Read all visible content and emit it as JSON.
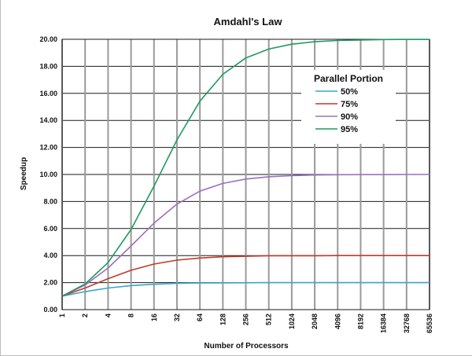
{
  "chart_data": {
    "type": "line",
    "title": "Amdahl's Law",
    "xlabel": "Number of Processors",
    "ylabel": "Speedup",
    "x_scale": "log2",
    "x": [
      1,
      2,
      4,
      8,
      16,
      32,
      64,
      128,
      256,
      512,
      1024,
      2048,
      4096,
      8192,
      16384,
      32768,
      65536
    ],
    "x_tick_labels": [
      "1",
      "2",
      "4",
      "8",
      "16",
      "32",
      "64",
      "128",
      "256",
      "512",
      "1024",
      "2048",
      "4096",
      "8192",
      "16384",
      "32768",
      "65536"
    ],
    "ylim": [
      0,
      20
    ],
    "y_ticks": [
      0,
      2,
      4,
      6,
      8,
      10,
      12,
      14,
      16,
      18,
      20
    ],
    "y_tick_labels": [
      "0.00",
      "2.00",
      "4.00",
      "6.00",
      "8.00",
      "10.00",
      "12.00",
      "14.00",
      "16.00",
      "18.00",
      "20.00"
    ],
    "grid": true,
    "legend": {
      "title": "Parallel Portion",
      "placement": "top-right"
    },
    "series": [
      {
        "name": "50%",
        "color": "#3aa7c9",
        "values": [
          1.0,
          1.33,
          1.6,
          1.78,
          1.88,
          1.94,
          1.97,
          1.98,
          1.99,
          2.0,
          2.0,
          2.0,
          2.0,
          2.0,
          2.0,
          2.0,
          2.0
        ]
      },
      {
        "name": "75%",
        "color": "#c0392b",
        "values": [
          1.0,
          1.6,
          2.29,
          2.91,
          3.37,
          3.66,
          3.82,
          3.91,
          3.95,
          3.98,
          3.99,
          3.99,
          4.0,
          4.0,
          4.0,
          4.0,
          4.0
        ]
      },
      {
        "name": "90%",
        "color": "#9b6fc3",
        "values": [
          1.0,
          1.82,
          3.08,
          4.71,
          6.4,
          7.8,
          8.77,
          9.34,
          9.66,
          9.83,
          9.91,
          9.96,
          9.98,
          9.99,
          9.99,
          10.0,
          10.0
        ]
      },
      {
        "name": "95%",
        "color": "#1e9a5e",
        "values": [
          1.0,
          1.9,
          3.48,
          5.93,
          9.14,
          12.55,
          15.42,
          17.41,
          18.62,
          19.28,
          19.64,
          19.82,
          19.91,
          19.95,
          19.98,
          19.99,
          19.99
        ]
      }
    ]
  }
}
